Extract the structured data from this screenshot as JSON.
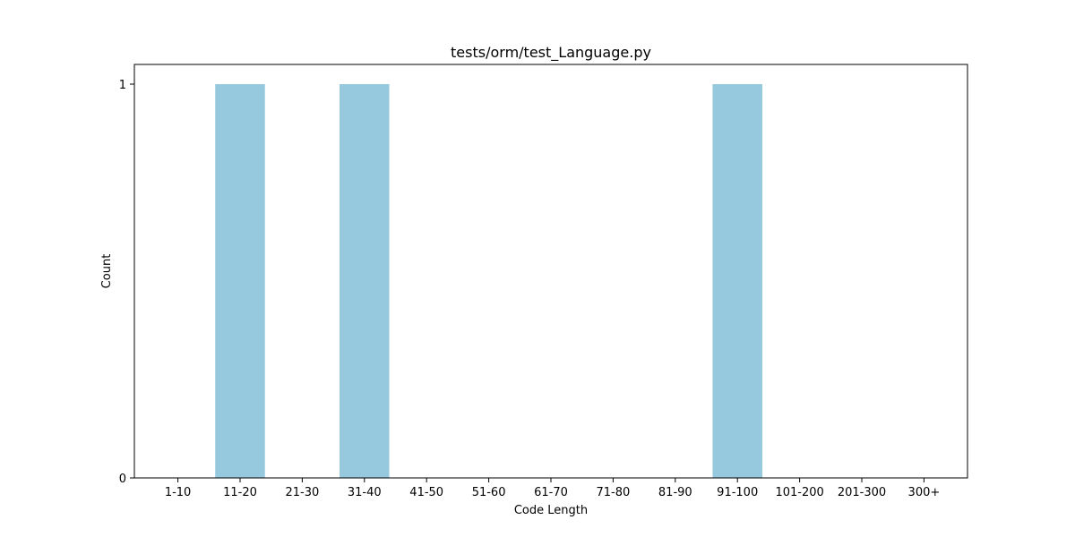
{
  "chart_data": {
    "type": "bar",
    "title": "tests/orm/test_Language.py",
    "xlabel": "Code Length",
    "ylabel": "Count",
    "categories": [
      "1-10",
      "11-20",
      "21-30",
      "31-40",
      "41-50",
      "51-60",
      "61-70",
      "71-80",
      "81-90",
      "91-100",
      "101-200",
      "201-300",
      "300+"
    ],
    "values": [
      0,
      1,
      0,
      1,
      0,
      0,
      0,
      0,
      0,
      1,
      0,
      0,
      0
    ],
    "ylim": [
      0,
      1.05
    ],
    "yticks": [
      0,
      1
    ],
    "bar_color": "#96c9de",
    "grid": false,
    "legend": "none"
  }
}
